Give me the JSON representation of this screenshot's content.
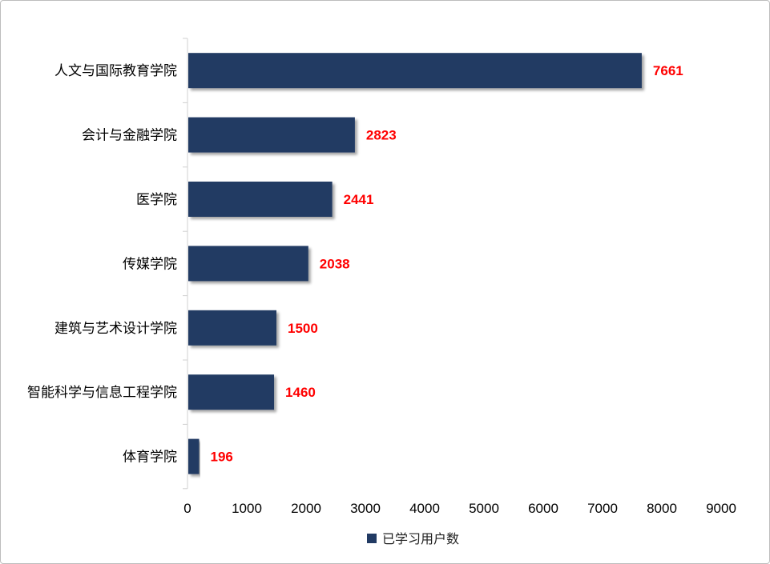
{
  "chart_data": {
    "type": "bar",
    "orientation": "horizontal",
    "categories": [
      "人文与国际教育学院",
      "会计与金融学院",
      "医学院",
      "传媒学院",
      "建筑与艺术设计学院",
      "智能科学与信息工程学院",
      "体育学院"
    ],
    "series": [
      {
        "name": "已学习用户数",
        "values": [
          7661,
          2823,
          2441,
          2038,
          1500,
          1460,
          196
        ]
      }
    ],
    "data_labels": [
      "7661",
      "2823",
      "2441",
      "2038",
      "1500",
      "1460",
      "196"
    ],
    "x_ticks": [
      "0",
      "1000",
      "2000",
      "3000",
      "4000",
      "5000",
      "6000",
      "7000",
      "8000",
      "9000"
    ],
    "xlim": [
      0,
      9000
    ],
    "grid": false,
    "legend_position": "bottom",
    "colors": {
      "bar": "#213a63",
      "data_label": "#ff0000",
      "axis": "#d0d0d0"
    }
  }
}
